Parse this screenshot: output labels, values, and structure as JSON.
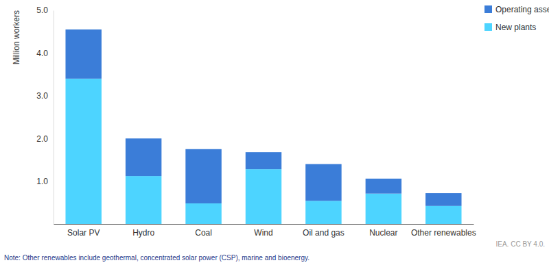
{
  "chart_data": {
    "type": "bar",
    "stacked": true,
    "grid": false,
    "legend": "top-right",
    "y_label": "Million workers",
    "annotations": [
      "IEA. CC BY 4.0.",
      "Note: Other renewables include geothermal, concentrated solar power (CSP), marine and bioenergy."
    ],
    "categories": [
      "Solar PV",
      "Hydro",
      "Coal",
      "Wind",
      "Oil and gas",
      "Nuclear",
      "Other renewables"
    ],
    "series": [
      {
        "name": "Operating assets",
        "color": "#3b7dd8",
        "values": [
          1.15,
          0.88,
          1.27,
          0.4,
          0.86,
          0.35,
          0.3
        ]
      },
      {
        "name": "New plants",
        "color": "#4dd4ff",
        "values": [
          3.4,
          1.12,
          0.48,
          1.28,
          0.54,
          0.71,
          0.42
        ]
      }
    ],
    "ylim": [
      0,
      5
    ],
    "yticks": [
      {
        "value": 1,
        "label": "1.0"
      },
      {
        "value": 2,
        "label": "2.0"
      },
      {
        "value": 3,
        "label": "3.0"
      },
      {
        "value": 4,
        "label": "4.0"
      },
      {
        "value": 5,
        "label": "5.0"
      }
    ]
  }
}
